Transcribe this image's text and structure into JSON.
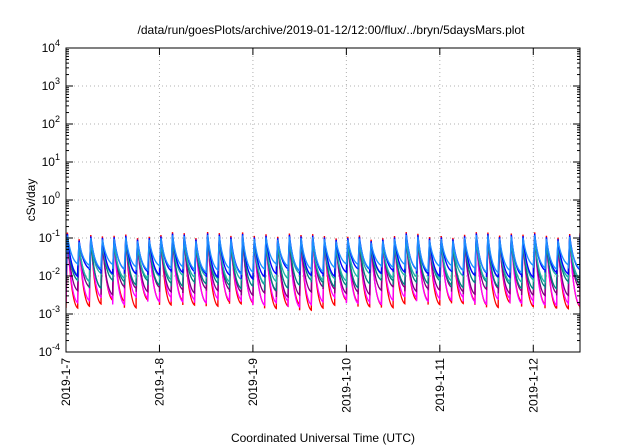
{
  "chart_data": {
    "type": "line",
    "title": "/data/run/goesPlots/archive/2019-01-12/12:00/flux/../bryn/5daysMars.plot",
    "xlabel": "Coordinated Universal Time (UTC)",
    "ylabel": "cSv/day",
    "y_scale": "log",
    "ylim": [
      0.0001,
      10000
    ],
    "xlim": [
      "2019-01-07",
      "2019-01-12 12:00"
    ],
    "x_ticks": [
      "2019-1-7",
      "2019-1-8",
      "2019-1-9",
      "2019-1-10",
      "2019-1-11",
      "2019-1-12"
    ],
    "y_ticks": [
      {
        "base": "10",
        "exp": "-4"
      },
      {
        "base": "10",
        "exp": "-3"
      },
      {
        "base": "10",
        "exp": "-2"
      },
      {
        "base": "10",
        "exp": "-1"
      },
      {
        "base": "10",
        "exp": "0"
      },
      {
        "base": "10",
        "exp": "1"
      },
      {
        "base": "10",
        "exp": "2"
      },
      {
        "base": "10",
        "exp": "3"
      },
      {
        "base": "10",
        "exp": "4"
      }
    ],
    "grid": true,
    "sawtooth_period_hours": 3,
    "series": [
      {
        "color": "#ff0000",
        "peak": 0.12,
        "trough": 0.0018
      },
      {
        "color": "#ff00ff",
        "peak": 0.1,
        "trough": 0.0022
      },
      {
        "color": "#800080",
        "peak": 0.09,
        "trough": 0.004
      },
      {
        "color": "#008080",
        "peak": 0.085,
        "trough": 0.006
      },
      {
        "color": "#20b2aa",
        "peak": 0.08,
        "trough": 0.009
      },
      {
        "color": "#0000ff",
        "peak": 0.11,
        "trough": 0.012
      },
      {
        "color": "#1e90ff",
        "peak": 0.1,
        "trough": 0.016
      }
    ]
  }
}
